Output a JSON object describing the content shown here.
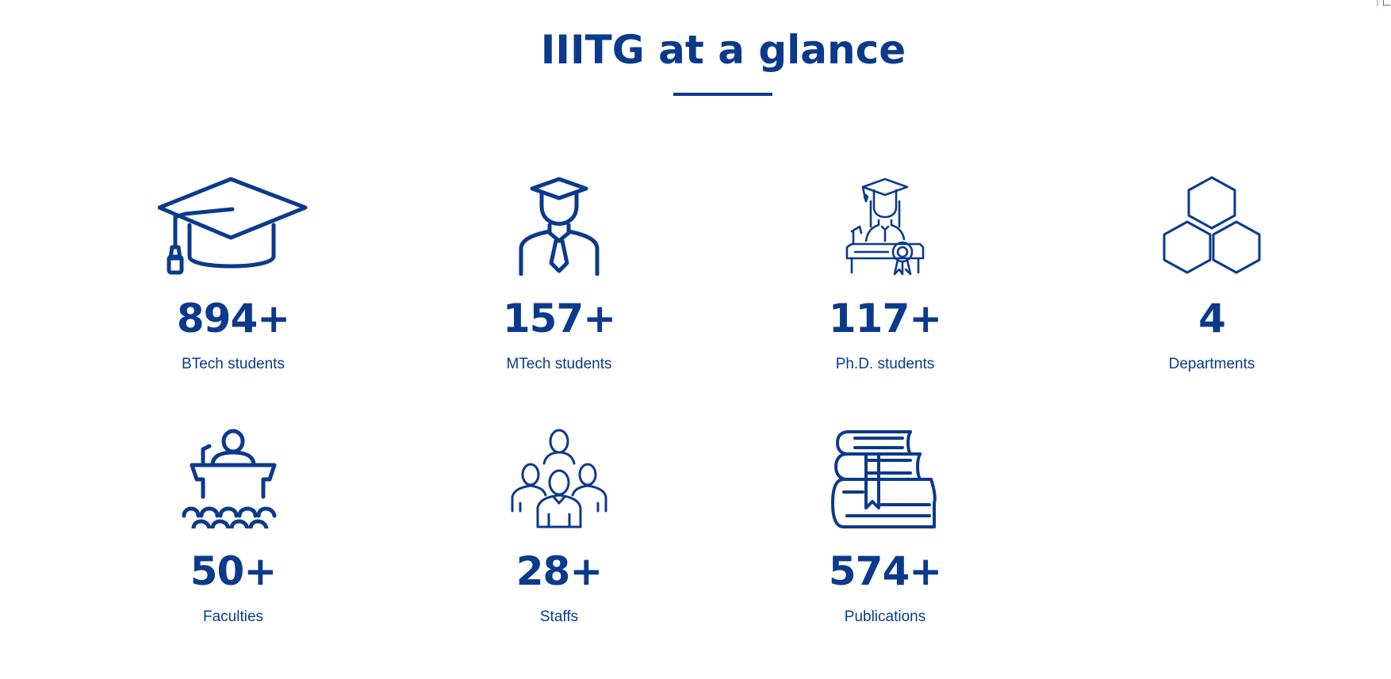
{
  "section": {
    "title": "IIITG at a glance"
  },
  "stats": [
    {
      "value": "894+",
      "label": "BTech students",
      "icon": "graduation-cap-icon"
    },
    {
      "value": "157+",
      "label": "MTech students",
      "icon": "graduate-person-icon"
    },
    {
      "value": "117+",
      "label": "Ph.D. students",
      "icon": "phd-graduate-icon"
    },
    {
      "value": "4",
      "label": "Departments",
      "icon": "hexagons-icon"
    },
    {
      "value": "50+",
      "label": "Faculties",
      "icon": "lecturer-podium-icon"
    },
    {
      "value": "28+",
      "label": "Staffs",
      "icon": "staff-group-icon"
    },
    {
      "value": "574+",
      "label": "Publications",
      "icon": "books-stack-icon"
    }
  ],
  "colors": {
    "brand": "#0b3a8c",
    "background": "#ffffff"
  }
}
